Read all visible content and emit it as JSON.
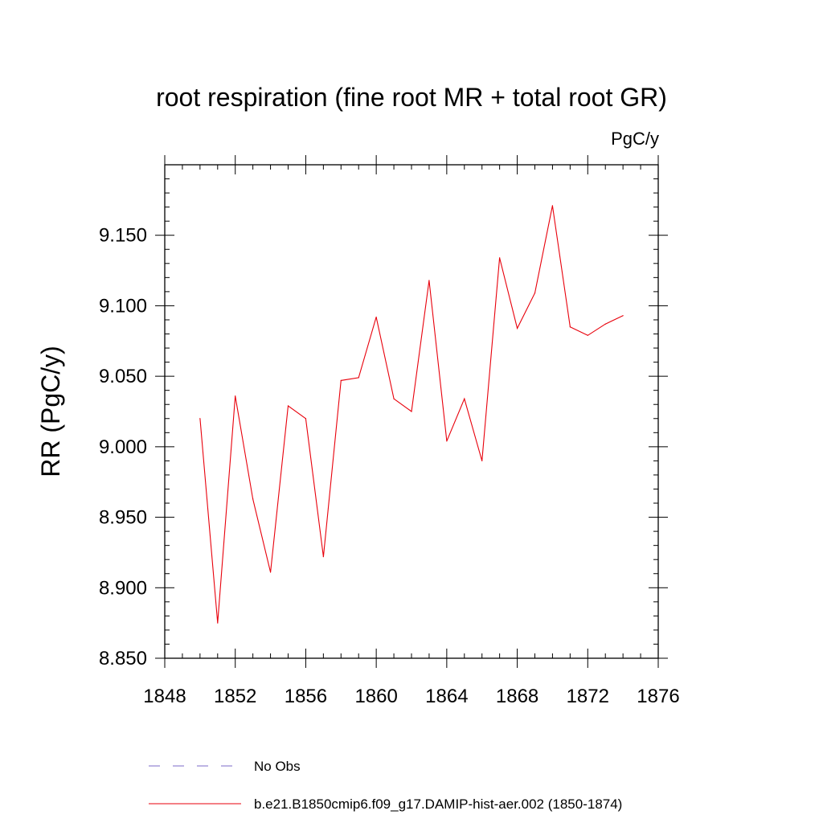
{
  "chart_data": {
    "type": "line",
    "title": "root respiration (fine root MR + total root GR)",
    "units_label": "PgC/y",
    "ylabel": "RR  (PgC/y)",
    "xlabel": "",
    "xlim": [
      1848,
      1876
    ],
    "ylim": [
      8.85,
      9.2
    ],
    "x_ticks": [
      1848,
      1852,
      1856,
      1860,
      1864,
      1868,
      1872,
      1876
    ],
    "x_tick_labels": [
      "1848",
      "1852",
      "1856",
      "1860",
      "1864",
      "1868",
      "1872",
      "1876"
    ],
    "y_ticks": [
      8.85,
      8.9,
      8.95,
      9.0,
      9.05,
      9.1,
      9.15
    ],
    "y_tick_labels": [
      "8.850",
      "8.900",
      "8.950",
      "9.000",
      "9.050",
      "9.100",
      "9.150"
    ],
    "grid": false,
    "legend_position": "bottom",
    "series": [
      {
        "name": "b.e21.B1850cmip6.f09_g17.DAMIP-hist-aer.002 (1850-1874)",
        "color": "#e8000b",
        "x": [
          1850,
          1851,
          1852,
          1853,
          1854,
          1855,
          1856,
          1857,
          1858,
          1859,
          1860,
          1861,
          1862,
          1863,
          1864,
          1865,
          1866,
          1867,
          1868,
          1869,
          1870,
          1871,
          1872,
          1873,
          1874
        ],
        "y": [
          9.02,
          8.875,
          9.036,
          8.963,
          8.911,
          9.029,
          9.02,
          8.922,
          9.047,
          9.049,
          9.092,
          9.034,
          9.025,
          9.118,
          9.004,
          9.034,
          8.99,
          9.134,
          9.084,
          9.109,
          9.171,
          9.085,
          9.079,
          9.087,
          9.093
        ]
      }
    ],
    "legend": [
      {
        "label": "No Obs",
        "color": "#7b68c8",
        "dashed": true
      },
      {
        "label": "b.e21.B1850cmip6.f09_g17.DAMIP-hist-aer.002 (1850-1874)",
        "color": "#e8000b",
        "dashed": false
      }
    ]
  }
}
